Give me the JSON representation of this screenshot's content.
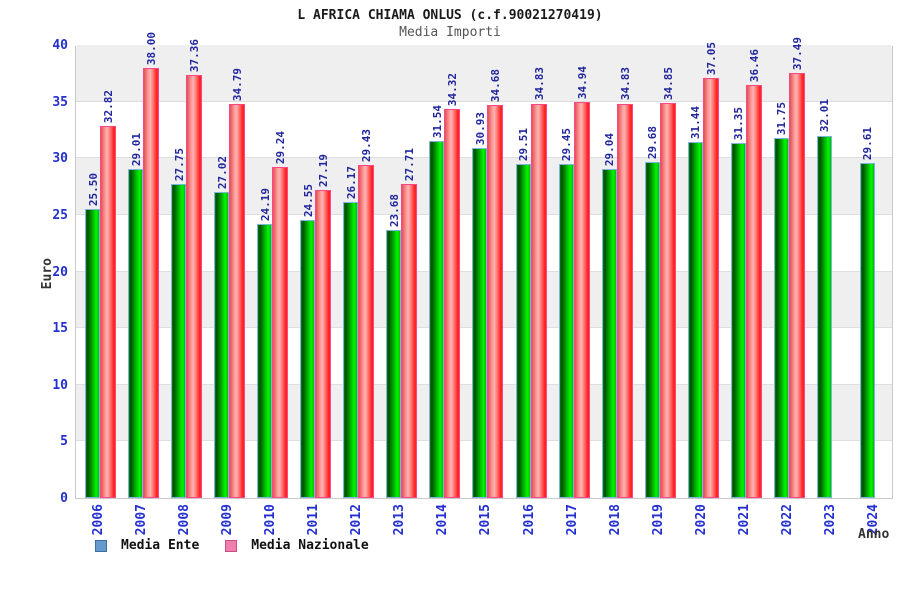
{
  "header": {
    "title": "L AFRICA CHIAMA ONLUS (c.f.90021270419)",
    "subtitle": "Media Importi"
  },
  "chart_data": {
    "type": "bar",
    "title": "L AFRICA CHIAMA ONLUS (c.f.90021270419)",
    "subtitle": "Media Importi",
    "xlabel": "Anno",
    "ylabel": "Euro",
    "ylim": [
      0,
      40
    ],
    "ytick_step": 5,
    "grid": "alternating-bands",
    "legend_position": "bottom-left",
    "categories": [
      "2006",
      "2007",
      "2008",
      "2009",
      "2010",
      "2011",
      "2012",
      "2013",
      "2014",
      "2015",
      "2016",
      "2017",
      "2018",
      "2019",
      "2020",
      "2021",
      "2022",
      "2023",
      "2024"
    ],
    "series": [
      {
        "name": "Media Ente",
        "bar_color": "#00cc00",
        "border_color": "#7db4e0",
        "values": [
          25.5,
          29.01,
          27.75,
          27.02,
          24.19,
          24.55,
          26.17,
          23.68,
          31.54,
          30.93,
          29.51,
          29.45,
          29.04,
          29.68,
          31.44,
          31.35,
          31.75,
          32.01,
          29.61
        ]
      },
      {
        "name": "Media Nazionale",
        "bar_color": "#ff3333",
        "border_color": "#ff4585",
        "values": [
          32.82,
          38.0,
          37.36,
          34.79,
          29.24,
          27.19,
          29.43,
          27.71,
          34.32,
          34.68,
          34.83,
          34.94,
          34.83,
          34.85,
          37.05,
          36.46,
          37.49,
          null,
          null
        ]
      }
    ],
    "legend": [
      {
        "label": "Media Ente",
        "swatch_fill": "#6699cc",
        "swatch_border": "#3d6fa3"
      },
      {
        "label": "Media Nazionale",
        "swatch_fill": "#ee7fae",
        "swatch_border": "#c94f84"
      }
    ],
    "colors": {
      "tick_label": "#2330cf",
      "value_label": "#23279e",
      "band_gray": "#efefef",
      "band_white": "#ffffff",
      "plot_border": "#c9c9c9"
    }
  }
}
